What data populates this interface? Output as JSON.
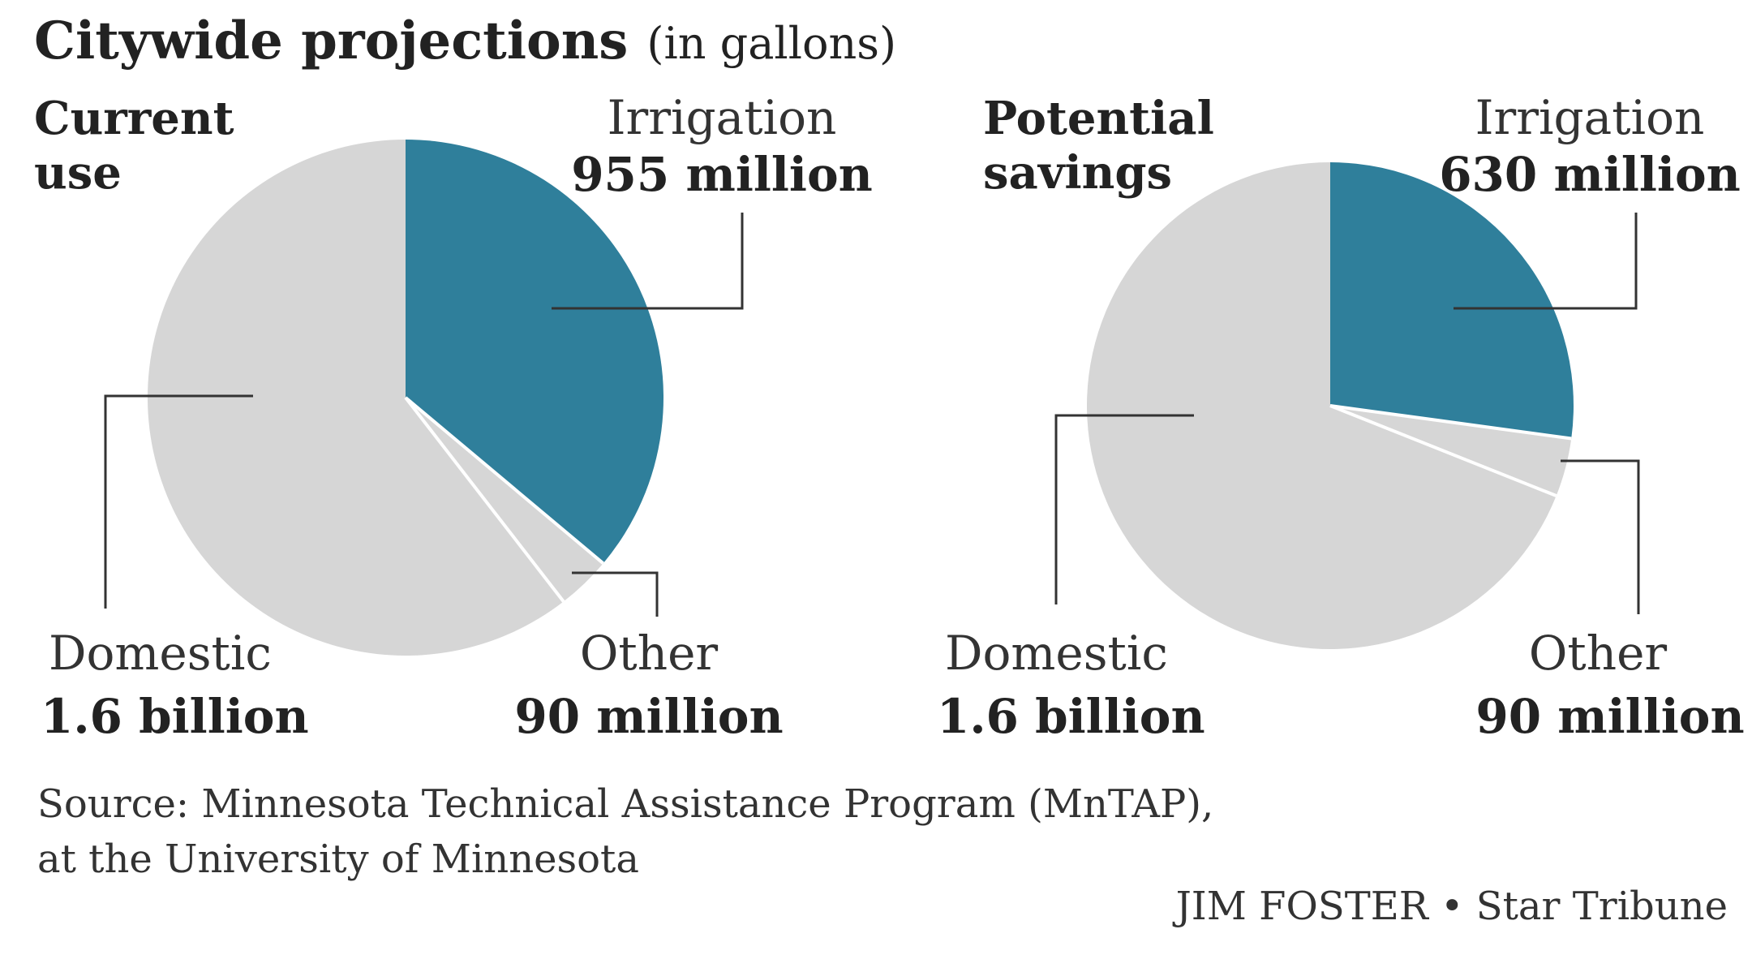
{
  "title": {
    "main": "Citywide projections",
    "unit": "(in gallons)"
  },
  "colors": {
    "irrigation": "#2f7f9b",
    "other": "#d6d6d6",
    "domestic": "#d6d6d6",
    "separator": "#ffffff",
    "leader": "#333333"
  },
  "chart_data": [
    {
      "type": "pie",
      "title": [
        "Current",
        "use"
      ],
      "slices": [
        {
          "name": "Irrigation",
          "value": 955,
          "label": "955 million",
          "color": "#2f7f9b"
        },
        {
          "name": "Other",
          "value": 90,
          "label": "90 million",
          "color": "#d6d6d6"
        },
        {
          "name": "Domestic",
          "value": 1600,
          "label": "1.6 billion",
          "color": "#d6d6d6"
        }
      ],
      "value_unit": "million gallons",
      "start_angle_deg": 0,
      "direction": "clockwise"
    },
    {
      "type": "pie",
      "title": [
        "Potential",
        "savings"
      ],
      "slices": [
        {
          "name": "Irrigation",
          "value": 630,
          "label": "630 million",
          "color": "#2f7f9b"
        },
        {
          "name": "Other",
          "value": 90,
          "label": "90 million",
          "color": "#d6d6d6"
        },
        {
          "name": "Domestic",
          "value": 1600,
          "label": "1.6 billion",
          "color": "#d6d6d6"
        }
      ],
      "value_unit": "million gallons",
      "start_angle_deg": 0,
      "direction": "clockwise"
    }
  ],
  "footer": {
    "source_line1": "Source: Minnesota Technical Assistance Program (MnTAP),",
    "source_line2": "at the University of Minnesota",
    "credit": "JIM FOSTER • Star Tribune"
  }
}
